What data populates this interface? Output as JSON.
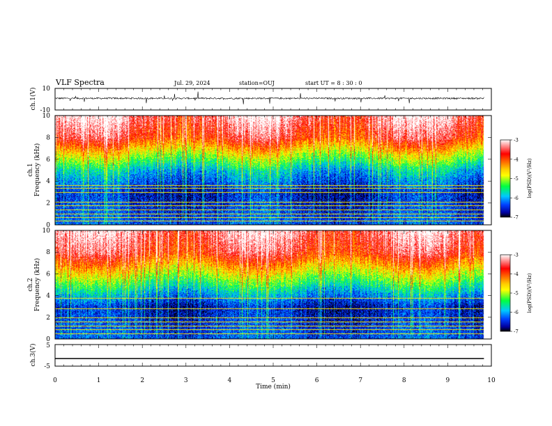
{
  "header": {
    "title": "VLF Spectra",
    "date": "Jul. 29, 2024",
    "station": "station=OUJ",
    "start": "start UT =  8 : 30 : 0"
  },
  "chart_data": [
    {
      "type": "line",
      "panel": "ch1-waveform",
      "ylabel": "ch.1(V)",
      "yticks": [
        "10",
        "-10"
      ],
      "ylim": [
        -10,
        10
      ],
      "baseline": 0.8,
      "noise_amplitude": 1.5,
      "xlim": [
        0,
        10
      ]
    },
    {
      "type": "heatmap",
      "panel": "ch1-spectrogram",
      "ylabel": "ch.1\nFrequency (kHz)",
      "ylabel_lines": [
        "ch.1",
        "Frequency (kHz)"
      ],
      "yticks": [
        "0",
        "2",
        "4",
        "6",
        "8",
        "10"
      ],
      "ylim": [
        0,
        10
      ],
      "xlim": [
        0,
        9.83
      ],
      "colorbar": {
        "label": "log(PSD)(V²/Hz)",
        "ticks": [
          "-3",
          "-4",
          "-5",
          "-6",
          "-7"
        ],
        "range": [
          -7,
          -3
        ]
      },
      "level_profile": [
        {
          "f": 0,
          "level": -6.3
        },
        {
          "f": 3,
          "level": -6.6
        },
        {
          "f": 5,
          "level": -5.9
        },
        {
          "f": 6.5,
          "level": -4.9
        },
        {
          "f": 8,
          "level": -3.8
        },
        {
          "f": 10,
          "level": -3.3
        }
      ],
      "tone_lines_khz": [
        0.4,
        0.7,
        1.0,
        1.4,
        1.8,
        2.1,
        3.0,
        3.4,
        3.6
      ]
    },
    {
      "type": "heatmap",
      "panel": "ch2-spectrogram",
      "ylabel": "ch.2\nFrequency (kHz)",
      "ylabel_lines": [
        "ch.2",
        "Frequency (kHz)"
      ],
      "yticks": [
        "0",
        "2",
        "4",
        "6",
        "8",
        "10"
      ],
      "ylim": [
        0,
        10
      ],
      "xlim": [
        0,
        9.83
      ],
      "colorbar": {
        "label": "log(PSD)(V²/Hz)",
        "ticks": [
          "-3",
          "-4",
          "-5",
          "-6",
          "-7"
        ],
        "range": [
          -7,
          -3
        ]
      },
      "level_profile": [
        {
          "f": 0,
          "level": -6.3
        },
        {
          "f": 3,
          "level": -6.6
        },
        {
          "f": 4.5,
          "level": -5.8
        },
        {
          "f": 6.5,
          "level": -4.6
        },
        {
          "f": 8,
          "level": -3.7
        },
        {
          "f": 10,
          "level": -3.3
        }
      ],
      "tone_lines_khz": [
        0.5,
        0.9,
        1.2,
        1.6,
        2.0,
        2.8,
        3.8
      ]
    },
    {
      "type": "line",
      "panel": "ch3-waveform",
      "ylabel": "ch.3(V)",
      "yticks": [
        "5",
        "-5"
      ],
      "ylim": [
        -5,
        5
      ],
      "baseline": -1.5,
      "xlim": [
        0,
        9.83
      ]
    }
  ],
  "xaxis": {
    "label": "Time (min)",
    "ticks": [
      "0",
      "1",
      "2",
      "3",
      "4",
      "5",
      "6",
      "7",
      "8",
      "9",
      "10"
    ],
    "range": [
      0,
      10
    ]
  }
}
